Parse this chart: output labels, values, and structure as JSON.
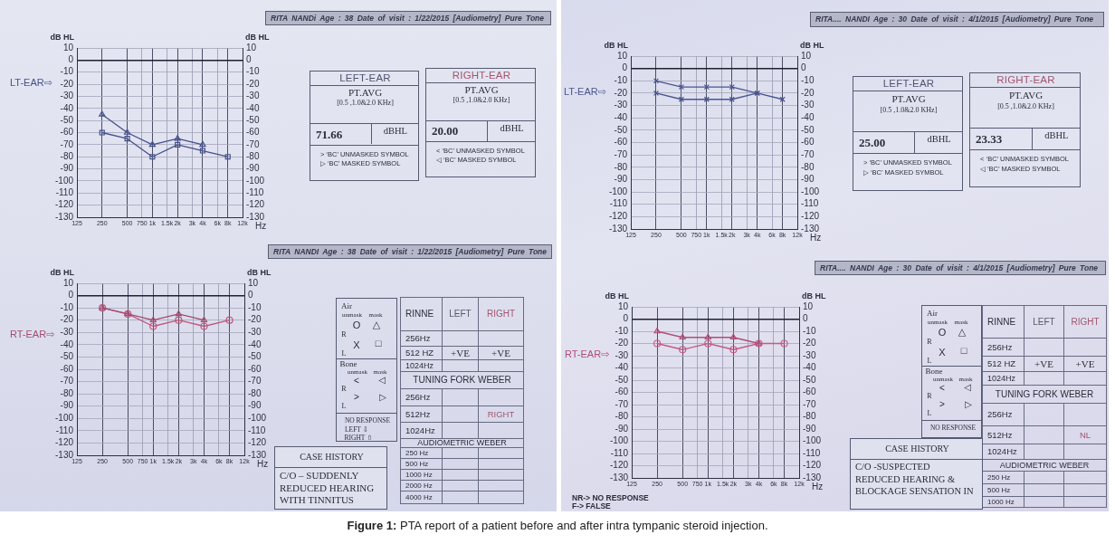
{
  "chart_data": [
    {
      "type": "other",
      "title": "RITA NANDi Age : 38 Date of visit : 1/22/2015 [Audiometry] Pure Tone"
    },
    {
      "type": "line",
      "x": [
        250,
        500,
        1000,
        2000,
        4000,
        8000
      ],
      "xlim": [
        125,
        12000
      ],
      "xticks": [
        125,
        250,
        500,
        750,
        {
          "value": 1000,
          "label": "1k"
        },
        {
          "value": 1500,
          "label": "1.5k"
        },
        {
          "value": 2000,
          "label": "2k"
        },
        {
          "value": 3000,
          "label": "3k"
        },
        {
          "value": 4000,
          "label": "4k"
        },
        {
          "value": 6000,
          "label": "6k"
        },
        {
          "value": 8000,
          "label": "8k"
        },
        {
          "value": 12000,
          "label": "12k"
        }
      ],
      "xlabel": "Hz",
      "ylabel": "dB HL",
      "y2label": "dB HL",
      "ylim": [
        -130,
        10
      ],
      "yticks": [
        10,
        0,
        -10,
        -20,
        -30,
        -40,
        -50,
        -60,
        -70,
        -80,
        -90,
        -100,
        -110,
        -120,
        -130
      ],
      "y2lim": [
        -130,
        10
      ],
      "y2ticks": [
        10,
        0,
        -10,
        -20,
        -30,
        -40,
        -50,
        -60,
        -70,
        -80,
        -90,
        -100,
        -110,
        -120,
        -130
      ],
      "log": "x",
      "grid": true,
      "series": [
        {
          "color": "#46508a",
          "marker": "triangle",
          "values": [
            -45,
            -60,
            -70,
            -65,
            -70,
            null
          ]
        },
        {
          "color": "#46508a",
          "marker": "square",
          "values": [
            -60,
            -65,
            -80,
            -70,
            -75,
            -80
          ]
        }
      ],
      "annotations": [
        "LT-EAR⇨"
      ]
    },
    {
      "type": "other",
      "title": "LEFT-EAR",
      "annotations": [
        "PT.AVG",
        "[0.5 ,1.0&2.0 KHz]",
        "71.66",
        "dBHL",
        "> ‘BC’ UNMASKED SYMBOL",
        "▷ ‘BC’ MASKED SYMBOL"
      ]
    },
    {
      "type": "other",
      "title": "RIGHT-EAR",
      "annotations": [
        "PT.AVG",
        "[0.5 ,1.0&2.0 KHz]",
        "20.00",
        "dBHL",
        "< ‘BC’ UNMASKED SYMBOL",
        "◁ ‘BC’ MASKED SYMBOL"
      ]
    },
    {
      "type": "other",
      "title": "RITA NANDI Age : 38 Date of visit : 1/22/2015 [Audiometry] Pure Tone"
    },
    {
      "type": "line",
      "x": [
        250,
        500,
        1000,
        2000,
        4000,
        8000
      ],
      "xlim": [
        125,
        12000
      ],
      "xticks": [
        125,
        250,
        500,
        750,
        {
          "value": 1000,
          "label": "1k"
        },
        {
          "value": 1500,
          "label": "1.5k"
        },
        {
          "value": 2000,
          "label": "2k"
        },
        {
          "value": 3000,
          "label": "3k"
        },
        {
          "value": 4000,
          "label": "4k"
        },
        {
          "value": 6000,
          "label": "6k"
        },
        {
          "value": 8000,
          "label": "8k"
        },
        {
          "value": 12000,
          "label": "12k"
        }
      ],
      "xlabel": "Hz",
      "ylabel": "dB HL",
      "y2label": "dB HL",
      "ylim": [
        -130,
        10
      ],
      "yticks": [
        10,
        0,
        -10,
        -20,
        -30,
        -40,
        -50,
        -60,
        -70,
        -80,
        -90,
        -100,
        -110,
        -120,
        -130
      ],
      "y2lim": [
        -130,
        10
      ],
      "y2ticks": [
        10,
        0,
        -10,
        -20,
        -30,
        -40,
        -50,
        -60,
        -70,
        -80,
        -90,
        -100,
        -110,
        -120,
        -130
      ],
      "log": "x",
      "grid": true,
      "series": [
        {
          "color": "#a44c72",
          "marker": "triangle",
          "values": [
            -10,
            -15,
            -20,
            -15,
            -20,
            null
          ]
        },
        {
          "color": "#c0587f",
          "marker": "circle",
          "values": [
            -10,
            -15,
            -25,
            -20,
            -25,
            -20
          ]
        }
      ],
      "annotations": [
        "RT-EAR⇨"
      ]
    },
    {
      "type": "other",
      "annotations": [
        "Air",
        "unmask",
        "mask",
        "O",
        "△",
        "R",
        "X",
        "□",
        "L",
        "Bone",
        "unmask",
        "mask",
        "<",
        "◁",
        "R",
        ">",
        "▷",
        "L",
        "NO RESPONSE",
        "LEFT ⇩",
        "RIGHT ⇧"
      ]
    },
    {
      "type": "other",
      "annotations": [
        "RINNE",
        "LEFT",
        "RIGHT",
        "256Hz",
        "512 HZ",
        "+VE",
        "+VE",
        "1024Hz",
        "TUNING FORK WEBER",
        "256Hz",
        "512Hz",
        "RIGHT",
        "1024Hz",
        "AUDIOMETRIC WEBER",
        "250 Hz",
        "500 Hz",
        "1000 Hz",
        "2000 Hz",
        "4000 Hz"
      ]
    },
    {
      "type": "other",
      "title": "CASE HISTORY",
      "annotations": [
        "C/O – SUDDENLY",
        "REDUCED HEARING",
        "WITH TINNITUS"
      ]
    },
    {
      "type": "other",
      "title": "RITA.... NANDI Age : 30 Date of visit : 4/1/2015 [Audiometry] Pure Tone"
    },
    {
      "type": "line",
      "x": [
        250,
        500,
        1000,
        2000,
        4000,
        8000
      ],
      "xlim": [
        125,
        12000
      ],
      "xticks": [
        125,
        250,
        500,
        750,
        {
          "value": 1000,
          "label": "1k"
        },
        {
          "value": 1500,
          "label": "1.5k"
        },
        {
          "value": 2000,
          "label": "2k"
        },
        {
          "value": 3000,
          "label": "3k"
        },
        {
          "value": 4000,
          "label": "4k"
        },
        {
          "value": 6000,
          "label": "6k"
        },
        {
          "value": 8000,
          "label": "8k"
        },
        {
          "value": 12000,
          "label": "12k"
        }
      ],
      "xlabel": "Hz",
      "ylabel": "dB HL",
      "y2label": "dB HL",
      "ylim": [
        -130,
        10
      ],
      "yticks": [
        10,
        0,
        -10,
        -20,
        -30,
        -40,
        -50,
        -60,
        -70,
        -80,
        -90,
        -100,
        -110,
        -120,
        -130
      ],
      "y2lim": [
        -130,
        10
      ],
      "y2ticks": [
        10,
        0,
        -10,
        -20,
        -30,
        -40,
        -50,
        -60,
        -70,
        -80,
        -90,
        -100,
        -110,
        -120,
        -130
      ],
      "log": "x",
      "grid": true,
      "series": [
        {
          "color": "#4a558f",
          "marker": "cross",
          "values": [
            -10,
            -15,
            -15,
            -15,
            -20,
            null
          ]
        },
        {
          "color": "#4a558f",
          "marker": "cross",
          "values": [
            -20,
            -25,
            -25,
            -25,
            -20,
            -25
          ]
        }
      ],
      "annotations": [
        "LT-EAR⇨"
      ]
    },
    {
      "type": "other",
      "title": "LEFT-EAR",
      "annotations": [
        "PT.AVG",
        "[0.5 ,1.0&2.0 KHz]",
        "25.00",
        "dBHL",
        "> ‘BC’ UNMASKED SYMBOL",
        "▷ ‘BC’ MASKED SYMBOL"
      ]
    },
    {
      "type": "other",
      "title": "RIGHT-EAR",
      "annotations": [
        "PT.AVG",
        "[0.5 ,1.0&2.0 KHz]",
        "23.33",
        "dBHL",
        "< ‘BC’ UNMASKED SYMBOL",
        "◁ ‘BC’ MASKED SYMBOL"
      ]
    },
    {
      "type": "other",
      "title": "RITA.... NANDI Age : 30 Date of visit : 4/1/2015 [Audiometry] Pure Tone"
    },
    {
      "type": "line",
      "x": [
        250,
        500,
        1000,
        2000,
        4000,
        8000
      ],
      "xlim": [
        125,
        12000
      ],
      "xticks": [
        125,
        250,
        500,
        750,
        {
          "value": 1000,
          "label": "1k"
        },
        {
          "value": 1500,
          "label": "1.5k"
        },
        {
          "value": 2000,
          "label": "2k"
        },
        {
          "value": 3000,
          "label": "3k"
        },
        {
          "value": 4000,
          "label": "4k"
        },
        {
          "value": 6000,
          "label": "6k"
        },
        {
          "value": 8000,
          "label": "8k"
        },
        {
          "value": 12000,
          "label": "12k"
        }
      ],
      "xlabel": "Hz",
      "ylabel": "dB HL",
      "y2label": "dB HL",
      "ylim": [
        -130,
        10
      ],
      "yticks": [
        10,
        0,
        -10,
        -20,
        -30,
        -40,
        -50,
        -60,
        -70,
        -80,
        -90,
        -100,
        -110,
        -120,
        -130
      ],
      "y2lim": [
        -130,
        10
      ],
      "y2ticks": [
        10,
        0,
        -10,
        -20,
        -30,
        -40,
        -50,
        -60,
        -70,
        -80,
        -90,
        -100,
        -110,
        -120,
        -130
      ],
      "log": "x",
      "grid": true,
      "series": [
        {
          "color": "#b04e78",
          "marker": "triangle",
          "values": [
            -10,
            -15,
            -15,
            -15,
            -20,
            null
          ]
        },
        {
          "color": "#c85a85",
          "marker": "circle",
          "values": [
            -20,
            -25,
            -20,
            -25,
            -20,
            -20
          ]
        }
      ],
      "annotations": [
        "RT-EAR⇨"
      ]
    },
    {
      "type": "other",
      "annotations": [
        "Air",
        "unmask",
        "mask",
        "O",
        "△",
        "R",
        "X",
        "□",
        "L",
        "Bone",
        "unmask",
        "mask",
        "<",
        "◁",
        "R",
        ">",
        "▷",
        "L",
        "NO RESPONSE"
      ]
    },
    {
      "type": "other",
      "annotations": [
        "RINNE",
        "LEFT",
        "RIGHT",
        "256Hz",
        "512 HZ",
        "+VE",
        "+VE",
        "1024Hz",
        "TUNING FORK WEBER",
        "256Hz",
        "512Hz",
        "NL",
        "1024Hz",
        "AUDIOMETRIC WEBER",
        "250 Hz",
        "500 Hz",
        "1000 Hz"
      ]
    },
    {
      "type": "other",
      "title": "CASE HISTORY",
      "annotations": [
        "C/O -SUSPECTED",
        "REDUCED HEARING &",
        "BLOCKAGE SENSATION IN"
      ]
    },
    {
      "type": "other",
      "annotations": [
        "NR-> NO RESPONSE",
        "F-> FALSE"
      ]
    },
    {
      "type": "other",
      "title": "Figure 1: PTA report of a patient before and after intra tympanic steroid injection."
    }
  ]
}
